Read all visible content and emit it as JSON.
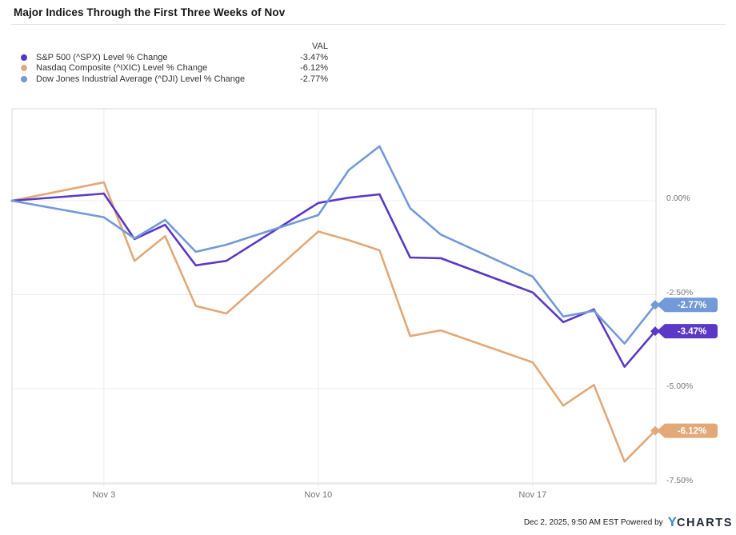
{
  "title": "Major Indices Through the First Three Weeks of Nov",
  "legend": {
    "val_header": "VAL",
    "items": [
      {
        "label": "S&P 500 (^SPX) Level % Change",
        "value": "-3.47%",
        "color": "#5634c8"
      },
      {
        "label": "Nasdaq Composite (^IXIC) Level % Change",
        "value": "-6.12%",
        "color": "#e2a87a"
      },
      {
        "label": "Dow Jones Industrial Average (^DJI) Level % Change",
        "value": "-2.77%",
        "color": "#7399d8"
      }
    ]
  },
  "chart_data": {
    "type": "line",
    "title": "Major Indices Through the First Three Weeks of Nov",
    "x_axis": {
      "tick_labels": [
        "Nov 3",
        "Nov 10",
        "Nov 17"
      ],
      "tick_days": [
        3,
        10,
        17
      ],
      "day_range": [
        0,
        21
      ],
      "note": "x in calendar days since Oct 31 baseline; weekends drawn as straight segments"
    },
    "y_axis": {
      "tick_labels": [
        "0.00%",
        "-2.50%",
        "-5.00%",
        "-7.50%"
      ],
      "tick_values": [
        0,
        -2.5,
        -5,
        -7.5
      ],
      "ylim": [
        -7.55,
        2.45
      ],
      "unit": "% change"
    },
    "dates": [
      "Oct 31",
      "Nov 3",
      "Nov 4",
      "Nov 5",
      "Nov 6",
      "Nov 7",
      "Nov 10",
      "Nov 11",
      "Nov 12",
      "Nov 13",
      "Nov 14",
      "Nov 17",
      "Nov 18",
      "Nov 19",
      "Nov 20",
      "Nov 21"
    ],
    "x_days": [
      0,
      3,
      4,
      5,
      6,
      7,
      10,
      11,
      12,
      13,
      14,
      17,
      18,
      19,
      20,
      21
    ],
    "series": [
      {
        "name": "S&P 500 (^SPX) Level % Change",
        "color": "#5b38c6",
        "end_label": "-3.47%",
        "values": [
          0,
          0.19,
          -1.02,
          -0.64,
          -1.72,
          -1.6,
          -0.06,
          0.08,
          0.17,
          -1.51,
          -1.53,
          -2.44,
          -3.23,
          -2.89,
          -4.42,
          -3.47
        ]
      },
      {
        "name": "Nasdaq Composite (^IXIC) Level % Change",
        "color": "#e2a878",
        "end_label": "-6.12%",
        "values": [
          0,
          0.49,
          -1.6,
          -0.94,
          -2.8,
          -3.0,
          -0.82,
          -1.05,
          -1.32,
          -3.6,
          -3.45,
          -4.3,
          -5.45,
          -4.9,
          -6.94,
          -6.12
        ]
      },
      {
        "name": "Dow Jones Industrial Average (^DJI) Level % Change",
        "color": "#7399d8",
        "end_label": "-2.77%",
        "values": [
          0,
          -0.44,
          -1.0,
          -0.51,
          -1.36,
          -1.17,
          -0.38,
          0.82,
          1.45,
          -0.2,
          -0.9,
          -2.02,
          -3.08,
          -2.93,
          -3.8,
          -2.77
        ]
      }
    ],
    "legend_position": "top-left",
    "grid": true
  },
  "footer": {
    "timestamp_powered": "Dec 2, 2025, 9:50 AM EST Powered by",
    "logo_y": "Y",
    "logo_charts": "CHARTS"
  }
}
